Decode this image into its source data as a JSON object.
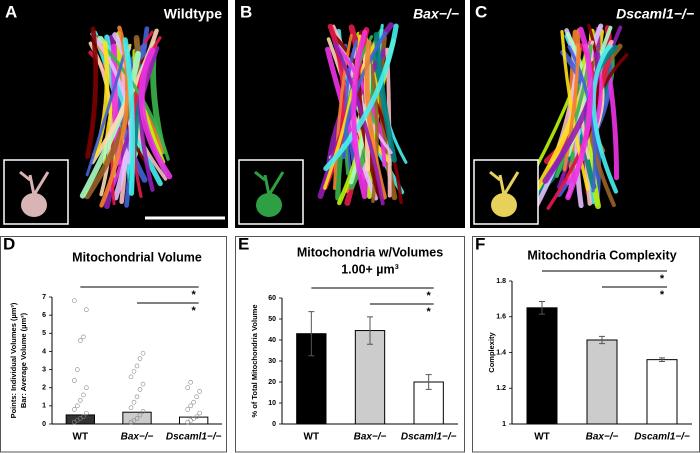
{
  "panels": [
    {
      "letter": "A",
      "label": "Wildtype"
    },
    {
      "letter": "B",
      "label": "Bax−/−"
    },
    {
      "letter": "C",
      "label": "Dscaml1−/−"
    }
  ],
  "chart_data": [
    {
      "type": "bar",
      "letter": "D",
      "title": "Mitochondrial Volume",
      "ylabel": [
        "Points: Individual Volumes (µm³)",
        "Bar: Average Volume (µm³)"
      ],
      "categories": [
        "WT",
        "Bax−/−",
        "Dscaml1−/−"
      ],
      "values": [
        0.5,
        0.65,
        0.38
      ],
      "colors": [
        "#333333",
        "#cccccc",
        "#ffffff"
      ],
      "points": [
        [
          0.1,
          0.2,
          0.3,
          0.4,
          0.6,
          0.8,
          1.0,
          1.3,
          1.6,
          2.0,
          2.4,
          3.0,
          4.6,
          4.8,
          6.3,
          6.8
        ],
        [
          0.1,
          0.2,
          0.3,
          0.5,
          0.7,
          0.9,
          1.2,
          1.5,
          1.9,
          2.2,
          2.6,
          2.9,
          3.2,
          3.6,
          3.9
        ],
        [
          0.1,
          0.2,
          0.3,
          0.4,
          0.6,
          0.8,
          1.0,
          1.2,
          1.5,
          1.8,
          2.0,
          2.3
        ]
      ],
      "ylim": [
        0,
        7
      ],
      "yticks": [
        0,
        1,
        2,
        3,
        4,
        5,
        6,
        7
      ],
      "significance": [
        {
          "from": 0,
          "to": 2,
          "label": "*"
        },
        {
          "from": 1,
          "to": 2,
          "label": "*"
        }
      ]
    },
    {
      "type": "bar",
      "letter": "E",
      "title": "Mitochondria w/Volumes",
      "subtitle": "1.00+ µm³",
      "ylabel": [
        "% of Total Mitochondria Volume"
      ],
      "categories": [
        "WT",
        "Bax−/−",
        "Dscaml1−/−"
      ],
      "values": [
        43,
        44.5,
        20
      ],
      "errors": [
        10.5,
        6.5,
        3.5
      ],
      "colors": [
        "#000000",
        "#cccccc",
        "#ffffff"
      ],
      "ylim": [
        0,
        60
      ],
      "yticks": [
        0,
        10,
        20,
        30,
        40,
        50,
        60
      ],
      "significance": [
        {
          "from": 0,
          "to": 2,
          "label": "*"
        },
        {
          "from": 1,
          "to": 2,
          "label": "*"
        }
      ]
    },
    {
      "type": "bar",
      "letter": "F",
      "title": "Mitochondria Complexity",
      "ylabel": [
        "Complexity"
      ],
      "categories": [
        "WT",
        "Bax−/−",
        "Dscaml1−/−"
      ],
      "values": [
        1.65,
        1.47,
        1.36
      ],
      "errors": [
        0.035,
        0.02,
        0.01
      ],
      "colors": [
        "#000000",
        "#cccccc",
        "#ffffff"
      ],
      "ylim": [
        1,
        1.8
      ],
      "yticks": [
        1,
        1.2,
        1.4,
        1.6,
        1.8
      ],
      "significance": [
        {
          "from": 0,
          "to": 2,
          "label": "*"
        },
        {
          "from": 1,
          "to": 2,
          "label": "*"
        }
      ]
    }
  ]
}
